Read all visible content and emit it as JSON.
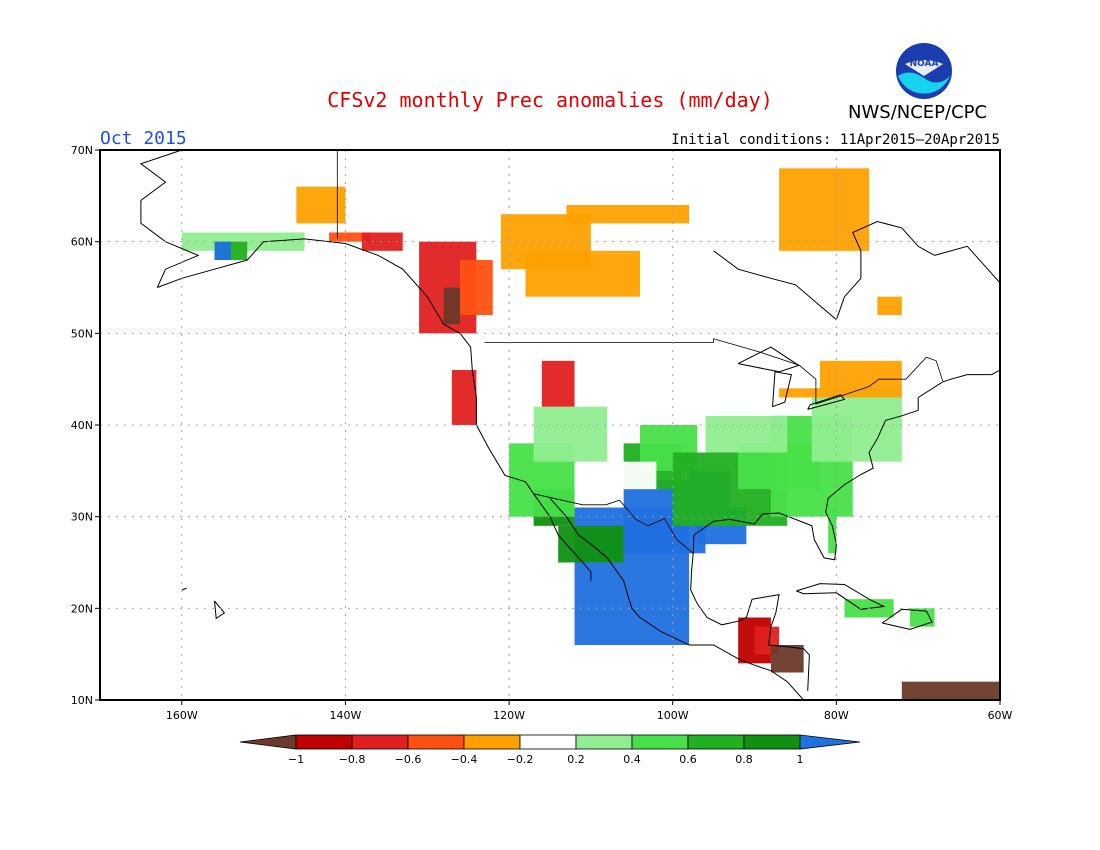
{
  "header": {
    "title": "CFSv2 monthly Prec anomalies (mm/day)",
    "month": "Oct 2015",
    "initial_conditions": "Initial conditions: 11Apr2015–20Apr2015",
    "agency": "NWS/NCEP/CPC",
    "logo_text": "NOAA"
  },
  "map": {
    "lon_range": [
      -170,
      -60
    ],
    "lat_range": [
      10,
      70
    ],
    "lat_labels": [
      "70N",
      "60N",
      "50N",
      "40N",
      "30N",
      "20N",
      "10N"
    ],
    "lon_labels": [
      "160W",
      "140W",
      "120W",
      "100W",
      "80W",
      "60W"
    ],
    "grid": true
  },
  "legend": {
    "ticks": [
      "−1",
      "−0.8",
      "−0.6",
      "−0.4",
      "−0.2",
      "0.2",
      "0.4",
      "0.6",
      "0.8",
      "1"
    ],
    "colors": [
      "#6b3a2a",
      "#c00000",
      "#e02020",
      "#ff5010",
      "#ffa000",
      "#ffffff",
      "#90ee90",
      "#48e048",
      "#20b020",
      "#109010",
      "#2070e0"
    ]
  },
  "colors": {
    "title": "#e00000",
    "month": "#2050e0",
    "coast": "#000000",
    "grid": "#a0a0a0"
  }
}
